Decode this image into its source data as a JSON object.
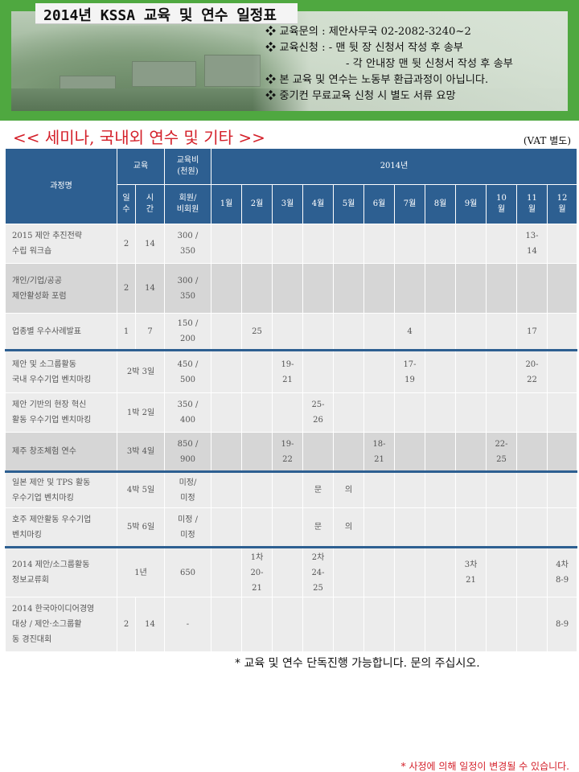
{
  "header": {
    "title": "2014년 KSSA 교육 및 연수 일정표",
    "info": [
      "❖ 교육문의 : 제안사무국 02-2082-3240~2",
      "❖ 교육신청 : - 맨 뒷 장 신청서 작성 후 송부",
      "- 각 안내장 맨 뒷 신청서 작성 후 송부",
      "❖ 본 교육 및 연수는 노동부 환급과정이 아닙니다.",
      "❖ 중기컨 무료교육 신청 시 별도 서류 요망"
    ]
  },
  "section_title": "<< 세미나, 국내외 연수 및 기타 >>",
  "vat_note": "(VAT 별도)",
  "table": {
    "headers": {
      "course": "과정명",
      "education": "교육",
      "fee": "교육비\n(천원)",
      "year": "2014년",
      "days": "일\n수",
      "hours": "시\n간",
      "member": "회원/\n비회원",
      "months": [
        "1월",
        "2월",
        "3월",
        "4월",
        "5월",
        "6월",
        "7월",
        "8월",
        "9월",
        "10\n월",
        "11\n월",
        "12\n월"
      ]
    },
    "rows": [
      {
        "name": "2015 제안 추진전략\n수립 워크숍",
        "days": "2",
        "hours": "14",
        "fee": "300 /\n350",
        "months": [
          "",
          "",
          "",
          "",
          "",
          "",
          "",
          "",
          "",
          "",
          "13-\n14",
          ""
        ]
      },
      {
        "name": "개인/기업/공공\n제안활성화 포럼",
        "days": "2",
        "hours": "14",
        "fee": "300 /\n350",
        "months": [
          "",
          "",
          "",
          "",
          "",
          "",
          "",
          "",
          "",
          "",
          "",
          ""
        ]
      },
      {
        "name": "업종별 우수사례발표",
        "days": "1",
        "hours": "7",
        "fee": "150 /\n200",
        "months": [
          "",
          "25",
          "",
          "",
          "",
          "",
          "4",
          "",
          "",
          "",
          "17",
          ""
        ]
      },
      {
        "name": "제안 및 소그룹활동\n국내 우수기업 벤치마킹",
        "period": "2박 3일",
        "fee": "450 /\n500",
        "months": [
          "",
          "",
          "19-\n21",
          "",
          "",
          "",
          "17-\n19",
          "",
          "",
          "",
          "20-\n22",
          ""
        ]
      },
      {
        "name": "제안 기반의 현장 혁신\n활동 우수기업 벤치마킹",
        "period": "1박 2일",
        "fee": "350 /\n400",
        "months": [
          "",
          "",
          "",
          "25-\n26",
          "",
          "",
          "",
          "",
          "",
          "",
          "",
          ""
        ]
      },
      {
        "name": "제주 창조체험 연수",
        "period": "3박 4일",
        "fee": "850 /\n900",
        "months": [
          "",
          "",
          "19-\n22",
          "",
          "",
          "18-\n21",
          "",
          "",
          "",
          "22-\n25",
          "",
          ""
        ]
      },
      {
        "name": "일본 제안 및 TPS 활동\n우수기업 벤치마킹",
        "period": "4박 5일",
        "fee": "미정/\n미정",
        "months": [
          "",
          "",
          "",
          "문",
          "의",
          "",
          "",
          "",
          "",
          "",
          "",
          ""
        ]
      },
      {
        "name": "호주 제안활동 우수기업\n벤치마킹",
        "period": "5박 6일",
        "fee": "미정 /\n미정",
        "months": [
          "",
          "",
          "",
          "문",
          "의",
          "",
          "",
          "",
          "",
          "",
          "",
          ""
        ]
      },
      {
        "name": "2014 제안/소그룹활동\n정보교류회",
        "period": "1년",
        "fee": "650",
        "months": [
          "",
          "1차\n20-\n21",
          "",
          "2차\n24-\n25",
          "",
          "",
          "",
          "",
          "3차\n21",
          "",
          "",
          "4차\n8-9"
        ]
      },
      {
        "name": "2014 한국아이디어경영\n대상 / 제안·소그룹활\n동 경진대회",
        "days": "2",
        "hours": "14",
        "fee": "-",
        "months": [
          "",
          "",
          "",
          "",
          "",
          "",
          "",
          "",
          "",
          "",
          "",
          "8-9"
        ]
      }
    ]
  },
  "note_bottom": "* 교육 및 연수 단독진행 가능합니다. 문의 주십시오.",
  "note_footer": "* 사정에 의해 일정이 변경될 수 있습니다.",
  "colors": {
    "header_green": "#4fa840",
    "table_header": "#2d5f91",
    "accent_red": "#d4202a"
  }
}
